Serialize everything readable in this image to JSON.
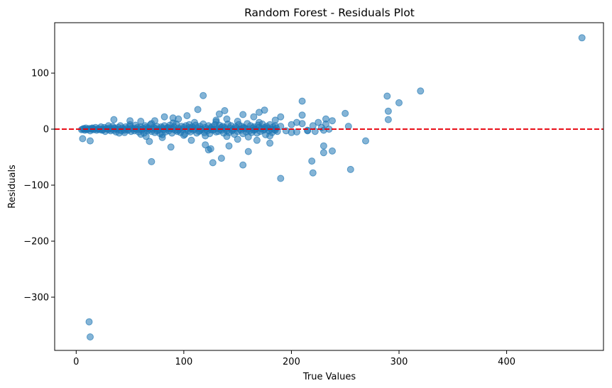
{
  "chart_data": {
    "type": "scatter",
    "title": "Random Forest - Residuals Plot",
    "xlabel": "True Values",
    "ylabel": "Residuals",
    "xlim": [
      -20,
      490
    ],
    "ylim": [
      -395,
      190
    ],
    "xticks": [
      0,
      100,
      200,
      300,
      400
    ],
    "yticks": [
      -300,
      -200,
      -100,
      0,
      100
    ],
    "xtick_labels": [
      "0",
      "100",
      "200",
      "300",
      "400"
    ],
    "ytick_labels": [
      "−300",
      "−200",
      "−100",
      "0",
      "100"
    ],
    "reference_line": {
      "y": 0,
      "color": "#e8000b",
      "style": "dashed"
    },
    "marker_color": "#1f77b4",
    "marker_alpha": 0.55,
    "series": [
      {
        "points": [
          [
            5,
            -1
          ],
          [
            6,
            0
          ],
          [
            7,
            1
          ],
          [
            8,
            -2
          ],
          [
            8,
            0
          ],
          [
            9,
            2
          ],
          [
            10,
            -1
          ],
          [
            11,
            0
          ],
          [
            12,
            1
          ],
          [
            13,
            -3
          ],
          [
            14,
            0
          ],
          [
            15,
            2
          ],
          [
            16,
            -1
          ],
          [
            17,
            0
          ],
          [
            18,
            3
          ],
          [
            19,
            -2
          ],
          [
            20,
            0
          ],
          [
            21,
            1
          ],
          [
            22,
            -1
          ],
          [
            23,
            4
          ],
          [
            24,
            -2
          ],
          [
            25,
            0
          ],
          [
            26,
            3
          ],
          [
            27,
            -4
          ],
          [
            28,
            1
          ],
          [
            29,
            0
          ],
          [
            30,
            -1
          ],
          [
            31,
            2
          ],
          [
            32,
            -3
          ],
          [
            33,
            0
          ],
          [
            34,
            5
          ],
          [
            35,
            -2
          ],
          [
            36,
            1
          ],
          [
            37,
            -5
          ],
          [
            38,
            0
          ],
          [
            39,
            3
          ],
          [
            40,
            -1
          ],
          [
            41,
            6
          ],
          [
            42,
            -3
          ],
          [
            43,
            2
          ],
          [
            44,
            0
          ],
          [
            45,
            -6
          ],
          [
            46,
            4
          ],
          [
            47,
            1
          ],
          [
            48,
            -2
          ],
          [
            49,
            0
          ],
          [
            50,
            5
          ],
          [
            51,
            -4
          ],
          [
            52,
            2
          ],
          [
            53,
            0
          ],
          [
            54,
            -3
          ],
          [
            55,
            7
          ],
          [
            56,
            -1
          ],
          [
            57,
            3
          ],
          [
            58,
            -5
          ],
          [
            59,
            0
          ],
          [
            60,
            4
          ],
          [
            61,
            -2
          ],
          [
            62,
            1
          ],
          [
            63,
            -7
          ],
          [
            64,
            6
          ],
          [
            65,
            0
          ],
          [
            66,
            -3
          ],
          [
            67,
            2
          ],
          [
            68,
            -1
          ],
          [
            69,
            8
          ],
          [
            70,
            -4
          ],
          [
            71,
            0
          ],
          [
            72,
            3
          ],
          [
            73,
            -6
          ],
          [
            74,
            1
          ],
          [
            75,
            5
          ],
          [
            76,
            -2
          ],
          [
            77,
            0
          ],
          [
            78,
            -8
          ],
          [
            79,
            4
          ],
          [
            80,
            2
          ],
          [
            81,
            -1
          ],
          [
            82,
            6
          ],
          [
            83,
            -5
          ],
          [
            84,
            0
          ],
          [
            85,
            3
          ],
          [
            86,
            -3
          ],
          [
            87,
            7
          ],
          [
            88,
            1
          ],
          [
            89,
            -7
          ],
          [
            90,
            0
          ],
          [
            91,
            4
          ],
          [
            92,
            -2
          ],
          [
            93,
            9
          ],
          [
            94,
            -4
          ],
          [
            95,
            2
          ],
          [
            96,
            0
          ],
          [
            97,
            -6
          ],
          [
            98,
            5
          ],
          [
            99,
            -1
          ],
          [
            100,
            3
          ],
          [
            101,
            -9
          ],
          [
            102,
            6
          ],
          [
            103,
            0
          ],
          [
            104,
            -3
          ],
          [
            105,
            8
          ],
          [
            106,
            -5
          ],
          [
            107,
            1
          ],
          [
            108,
            4
          ],
          [
            109,
            -2
          ],
          [
            110,
            0
          ],
          [
            111,
            7
          ],
          [
            112,
            -7
          ],
          [
            113,
            2
          ],
          [
            114,
            -4
          ],
          [
            115,
            5
          ],
          [
            116,
            0
          ],
          [
            117,
            -1
          ],
          [
            118,
            9
          ],
          [
            119,
            -6
          ],
          [
            120,
            3
          ],
          [
            121,
            0
          ],
          [
            122,
            -3
          ],
          [
            123,
            6
          ],
          [
            124,
            -8
          ],
          [
            125,
            2
          ],
          [
            126,
            4
          ],
          [
            127,
            -2
          ],
          [
            128,
            0
          ],
          [
            129,
            8
          ],
          [
            130,
            -5
          ],
          [
            131,
            1
          ],
          [
            132,
            -4
          ],
          [
            133,
            7
          ],
          [
            134,
            0
          ],
          [
            135,
            -2
          ],
          [
            136,
            5
          ],
          [
            137,
            -7
          ],
          [
            138,
            3
          ],
          [
            139,
            0
          ],
          [
            140,
            -3
          ],
          [
            141,
            9
          ],
          [
            142,
            -6
          ],
          [
            143,
            2
          ],
          [
            144,
            6
          ],
          [
            145,
            -1
          ],
          [
            146,
            0
          ],
          [
            147,
            -9
          ],
          [
            148,
            4
          ],
          [
            149,
            2
          ],
          [
            150,
            -4
          ],
          [
            151,
            8
          ],
          [
            152,
            0
          ],
          [
            153,
            -2
          ],
          [
            154,
            5
          ],
          [
            155,
            -8
          ],
          [
            156,
            3
          ],
          [
            157,
            1
          ],
          [
            158,
            -5
          ],
          [
            159,
            10
          ],
          [
            160,
            0
          ],
          [
            161,
            -3
          ],
          [
            162,
            6
          ],
          [
            163,
            -6
          ],
          [
            164,
            2
          ],
          [
            165,
            4
          ],
          [
            166,
            -1
          ],
          [
            167,
            0
          ],
          [
            168,
            -7
          ],
          [
            169,
            7
          ],
          [
            170,
            3
          ],
          [
            171,
            -4
          ],
          [
            172,
            1
          ],
          [
            173,
            9
          ],
          [
            174,
            -2
          ],
          [
            175,
            0
          ],
          [
            176,
            -10
          ],
          [
            177,
            5
          ],
          [
            178,
            2
          ],
          [
            179,
            -3
          ],
          [
            180,
            8
          ],
          [
            181,
            0
          ],
          [
            182,
            -6
          ],
          [
            183,
            4
          ],
          [
            184,
            -1
          ],
          [
            185,
            6
          ],
          [
            186,
            2
          ],
          [
            187,
            -4
          ],
          [
            15,
            1
          ],
          [
            25,
            -1
          ],
          [
            35,
            2
          ],
          [
            45,
            -2
          ],
          [
            55,
            1
          ],
          [
            65,
            3
          ],
          [
            75,
            -3
          ],
          [
            85,
            2
          ],
          [
            95,
            -2
          ],
          [
            105,
            3
          ],
          [
            115,
            -3
          ],
          [
            125,
            -1
          ],
          [
            135,
            3
          ],
          [
            145,
            -3
          ],
          [
            155,
            2
          ],
          [
            165,
            -2
          ],
          [
            175,
            3
          ],
          [
            185,
            -2
          ],
          [
            30,
            6
          ],
          [
            40,
            -7
          ],
          [
            50,
            8
          ],
          [
            60,
            -9
          ],
          [
            70,
            10
          ],
          [
            80,
            -10
          ],
          [
            90,
            11
          ],
          [
            100,
            -11
          ],
          [
            110,
            12
          ],
          [
            120,
            -12
          ],
          [
            130,
            13
          ],
          [
            140,
            -13
          ],
          [
            150,
            14
          ],
          [
            160,
            -14
          ],
          [
            170,
            12
          ],
          [
            180,
            -12
          ],
          [
            190,
            5
          ],
          [
            195,
            -3
          ],
          [
            200,
            8
          ],
          [
            205,
            -5
          ],
          [
            210,
            10
          ],
          [
            215,
            -2
          ],
          [
            220,
            6
          ],
          [
            222,
            -4
          ],
          [
            225,
            12
          ],
          [
            228,
            3
          ],
          [
            230,
            -2
          ],
          [
            232,
            9
          ],
          [
            235,
            0
          ],
          [
            238,
            15
          ],
          [
            6,
            -17
          ],
          [
            13,
            -21
          ],
          [
            35,
            17
          ],
          [
            50,
            15
          ],
          [
            60,
            14
          ],
          [
            65,
            -13
          ],
          [
            68,
            -22
          ],
          [
            70,
            -58
          ],
          [
            73,
            15
          ],
          [
            80,
            -15
          ],
          [
            82,
            22
          ],
          [
            88,
            -32
          ],
          [
            90,
            20
          ],
          [
            95,
            18
          ],
          [
            103,
            24
          ],
          [
            107,
            -20
          ],
          [
            113,
            35
          ],
          [
            118,
            60
          ],
          [
            120,
            -28
          ],
          [
            123,
            -37
          ],
          [
            125,
            -35
          ],
          [
            127,
            -60
          ],
          [
            130,
            16
          ],
          [
            133,
            27
          ],
          [
            135,
            -52
          ],
          [
            138,
            33
          ],
          [
            140,
            18
          ],
          [
            142,
            -30
          ],
          [
            150,
            -18
          ],
          [
            155,
            -64
          ],
          [
            155,
            26
          ],
          [
            160,
            -40
          ],
          [
            165,
            22
          ],
          [
            168,
            -20
          ],
          [
            170,
            30
          ],
          [
            175,
            34
          ],
          [
            180,
            -25
          ],
          [
            185,
            16
          ],
          [
            190,
            22
          ],
          [
            190,
            -88
          ],
          [
            200,
            -6
          ],
          [
            205,
            12
          ],
          [
            210,
            50
          ],
          [
            210,
            25
          ],
          [
            215,
            -3
          ],
          [
            219,
            -57
          ],
          [
            220,
            -78
          ],
          [
            230,
            -42
          ],
          [
            230,
            -30
          ],
          [
            232,
            18
          ],
          [
            238,
            -39
          ],
          [
            250,
            28
          ],
          [
            253,
            5
          ],
          [
            255,
            -72
          ],
          [
            269,
            -21
          ],
          [
            289,
            59
          ],
          [
            290,
            32
          ],
          [
            290,
            17
          ],
          [
            300,
            47
          ],
          [
            320,
            68
          ],
          [
            470,
            163
          ],
          [
            12,
            -344
          ],
          [
            13,
            -371
          ]
        ]
      }
    ]
  }
}
